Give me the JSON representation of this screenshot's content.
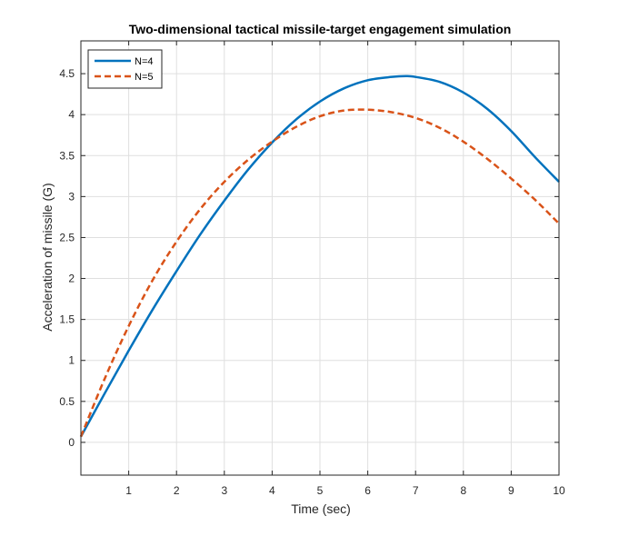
{
  "chart_data": {
    "type": "line",
    "title": "Two-dimensional tactical missile-target engagement simulation",
    "xlabel": "Time (sec)",
    "ylabel": "Acceleration of missile (G)",
    "xlim": [
      0,
      10
    ],
    "ylim": [
      -0.4,
      4.9
    ],
    "xticks": [
      1,
      2,
      3,
      4,
      5,
      6,
      7,
      8,
      9,
      10
    ],
    "yticks": [
      0,
      0.5,
      1,
      1.5,
      2,
      2.5,
      3,
      3.5,
      4,
      4.5
    ],
    "grid": true,
    "legend_position": "top-left",
    "series": [
      {
        "name": "N=4",
        "color": "#0072BD",
        "style": "solid",
        "x": [
          0,
          0.5,
          1,
          1.5,
          2,
          2.5,
          3,
          3.5,
          4,
          4.5,
          5,
          5.5,
          6,
          6.5,
          6.8,
          7,
          7.5,
          8,
          8.5,
          9,
          9.5,
          10
        ],
        "y": [
          0.07,
          0.6,
          1.12,
          1.62,
          2.09,
          2.54,
          2.95,
          3.33,
          3.66,
          3.94,
          4.16,
          4.32,
          4.42,
          4.46,
          4.47,
          4.46,
          4.4,
          4.27,
          4.07,
          3.8,
          3.48,
          3.18
        ]
      },
      {
        "name": "N=5",
        "color": "#D95319",
        "style": "dashed",
        "x": [
          0,
          0.5,
          1,
          1.5,
          2,
          2.5,
          3,
          3.5,
          4,
          4.5,
          5,
          5.5,
          6,
          6.5,
          7,
          7.5,
          8,
          8.5,
          9,
          9.5,
          10
        ],
        "y": [
          0.07,
          0.78,
          1.42,
          1.98,
          2.45,
          2.85,
          3.18,
          3.45,
          3.67,
          3.85,
          3.98,
          4.05,
          4.06,
          4.03,
          3.96,
          3.84,
          3.67,
          3.46,
          3.22,
          2.96,
          2.67
        ]
      }
    ]
  }
}
